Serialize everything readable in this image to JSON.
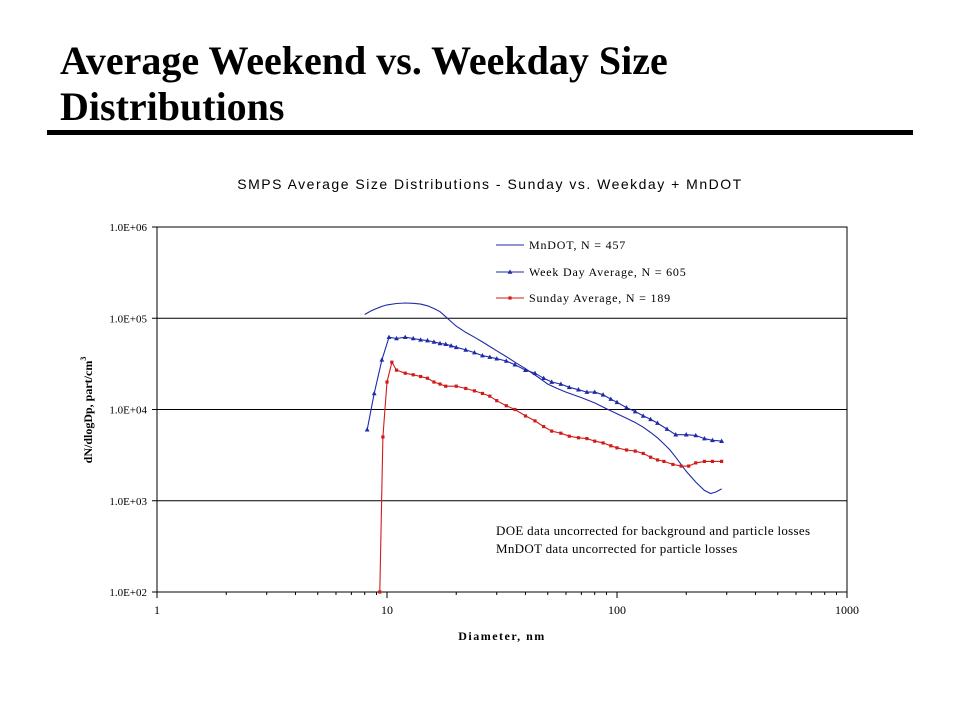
{
  "slide": {
    "title_line1": "Average Weekend vs. Weekday Size",
    "title_line2": "Distributions"
  },
  "chart_data": {
    "type": "line",
    "title": "SMPS Average Size Distributions - Sunday vs. Weekday + MnDOT",
    "xlabel": "Diameter, nm",
    "ylabel": "dN/dlogDp, part/cm",
    "ylabel_superscript": "3",
    "x_scale": "log",
    "y_scale": "log",
    "xlim": [
      1,
      1000
    ],
    "ylim": [
      100,
      1000000
    ],
    "x_ticks": [
      1,
      10,
      100,
      1000
    ],
    "x_tick_labels": [
      "1",
      "10",
      "100",
      "1000"
    ],
    "y_ticks": [
      100,
      1000,
      10000,
      100000,
      1000000
    ],
    "y_tick_labels": [
      "1.0E+02",
      "1.0E+03",
      "1.0E+04",
      "1.0E+05",
      "1.0E+06"
    ],
    "grid": "horizontal major",
    "legend_position": "top-right",
    "annotations": [
      "DOE data uncorrected for background and particle losses",
      "MnDOT data uncorrected for particle losses"
    ],
    "series": [
      {
        "name": "MnDOT, N = 457",
        "color": "#1f2aa8",
        "marker": "none",
        "x": [
          8,
          8.5,
          9,
          9.5,
          10,
          11,
          12,
          13,
          14,
          15,
          16,
          17,
          18,
          19,
          20,
          22,
          24,
          26,
          28,
          30,
          33,
          36,
          40,
          45,
          50,
          55,
          60,
          70,
          80,
          90,
          100,
          110,
          120,
          130,
          140,
          150,
          160,
          170,
          180,
          190,
          200,
          220,
          240,
          255,
          270,
          285
        ],
        "y": [
          110000,
          120000,
          128000,
          135000,
          140000,
          145000,
          147000,
          146000,
          143000,
          137000,
          128000,
          118000,
          104000,
          92000,
          82000,
          70000,
          62000,
          55000,
          49000,
          44000,
          38000,
          33000,
          28000,
          23000,
          19000,
          17000,
          15500,
          13500,
          11800,
          10200,
          9000,
          8000,
          7200,
          6400,
          5600,
          4900,
          4200,
          3600,
          3000,
          2500,
          2100,
          1600,
          1300,
          1200,
          1250,
          1350
        ]
      },
      {
        "name": "Week Day Average, N = 605",
        "color": "#1f2aa8",
        "marker": "triangle",
        "x": [
          8.2,
          8.8,
          9.5,
          10.2,
          11,
          12,
          13,
          14,
          15,
          16,
          17,
          18,
          19,
          20,
          22,
          24,
          26,
          28,
          30,
          33,
          36,
          40,
          44,
          48,
          52,
          57,
          62,
          68,
          74,
          80,
          87,
          94,
          100,
          110,
          120,
          130,
          140,
          150,
          165,
          180,
          200,
          220,
          240,
          260,
          285
        ],
        "y": [
          6000,
          15000,
          35000,
          62000,
          60000,
          62000,
          60000,
          58000,
          57000,
          55000,
          53000,
          52000,
          50000,
          48000,
          45000,
          42000,
          39000,
          37500,
          36000,
          34000,
          31000,
          27000,
          25000,
          22000,
          20000,
          19000,
          17500,
          16500,
          15500,
          15500,
          14500,
          13000,
          12000,
          10500,
          9500,
          8500,
          7800,
          7100,
          6100,
          5300,
          5300,
          5200,
          4800,
          4600,
          4500
        ]
      },
      {
        "name": "Sunday Average, N = 189",
        "color": "#d11a1a",
        "marker": "square",
        "x": [
          9.3,
          9.6,
          10,
          10.5,
          11,
          12,
          13,
          14,
          15,
          16,
          17,
          18,
          20,
          22,
          24,
          26,
          28,
          30,
          33,
          36,
          40,
          44,
          48,
          52,
          57,
          62,
          68,
          74,
          80,
          87,
          94,
          100,
          110,
          120,
          130,
          140,
          150,
          160,
          175,
          190,
          205,
          220,
          240,
          260,
          285
        ],
        "y": [
          100,
          5000,
          20000,
          33000,
          27000,
          25000,
          24000,
          23000,
          22000,
          20000,
          19000,
          18000,
          18000,
          17000,
          16000,
          15000,
          14000,
          12500,
          11000,
          10000,
          8500,
          7500,
          6500,
          5800,
          5500,
          5100,
          4900,
          4800,
          4500,
          4300,
          4000,
          3800,
          3600,
          3500,
          3300,
          3000,
          2800,
          2700,
          2500,
          2400,
          2400,
          2600,
          2700,
          2700,
          2700
        ]
      }
    ]
  }
}
